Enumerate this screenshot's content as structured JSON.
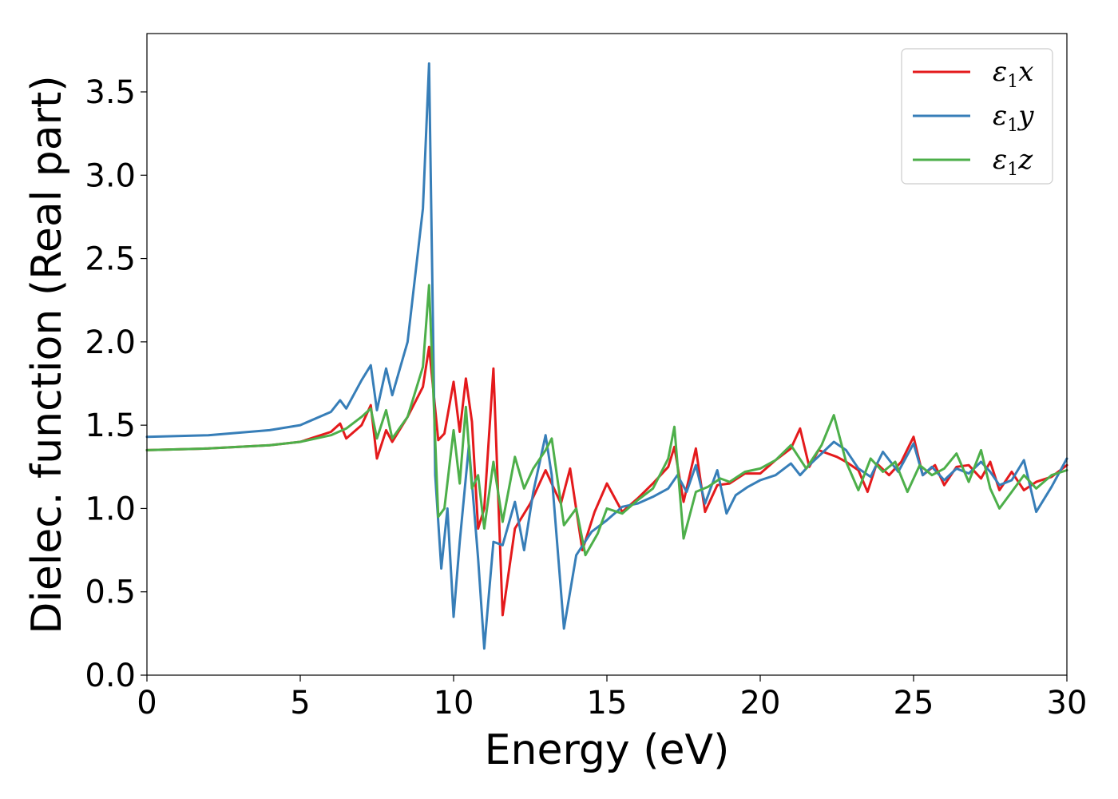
{
  "chart_data": {
    "type": "line",
    "xlabel": "Energy (eV)",
    "ylabel": "Dielec. function (Real part)",
    "xlim": [
      0,
      30
    ],
    "ylim": [
      0,
      3.85
    ],
    "xticks": [
      0,
      5,
      10,
      15,
      20,
      25,
      30
    ],
    "xtick_labels": [
      "0",
      "5",
      "10",
      "15",
      "20",
      "25",
      "30"
    ],
    "yticks": [
      0.0,
      0.5,
      1.0,
      1.5,
      2.0,
      2.5,
      3.0,
      3.5
    ],
    "ytick_labels": [
      "0.0",
      "0.5",
      "1.0",
      "1.5",
      "2.0",
      "2.5",
      "3.0",
      "3.5"
    ],
    "grid": false,
    "legend_position": "top-right",
    "series": [
      {
        "name": "ε1x",
        "label_main": "ε",
        "label_sub": "1",
        "label_var": "x",
        "color": "#e41a1c",
        "x": [
          0,
          2,
          4,
          5,
          6,
          6.3,
          6.5,
          7.0,
          7.3,
          7.5,
          7.8,
          8.0,
          8.5,
          9.0,
          9.2,
          9.5,
          9.7,
          10.0,
          10.2,
          10.4,
          10.6,
          10.8,
          11.0,
          11.3,
          11.6,
          12.0,
          12.5,
          13.0,
          13.5,
          13.8,
          14.2,
          14.6,
          15.0,
          15.5,
          16.0,
          16.5,
          17.0,
          17.2,
          17.5,
          17.9,
          18.2,
          18.6,
          19.0,
          19.5,
          20.0,
          20.5,
          21.0,
          21.3,
          21.6,
          21.9,
          22.2,
          22.5,
          22.8,
          23.2,
          23.5,
          23.8,
          24.2,
          24.6,
          25.0,
          25.3,
          25.7,
          26.0,
          26.4,
          26.8,
          27.2,
          27.5,
          27.8,
          28.2,
          28.6,
          29.0,
          29.5,
          30.0
        ],
        "values": [
          1.35,
          1.36,
          1.38,
          1.4,
          1.46,
          1.51,
          1.42,
          1.5,
          1.62,
          1.3,
          1.47,
          1.4,
          1.55,
          1.73,
          1.97,
          1.41,
          1.45,
          1.76,
          1.46,
          1.78,
          1.52,
          0.88,
          1.0,
          1.84,
          0.36,
          0.88,
          1.03,
          1.23,
          1.03,
          1.24,
          0.75,
          0.98,
          1.15,
          0.98,
          1.06,
          1.15,
          1.25,
          1.37,
          1.04,
          1.36,
          0.98,
          1.14,
          1.15,
          1.21,
          1.21,
          1.29,
          1.36,
          1.48,
          1.25,
          1.35,
          1.33,
          1.31,
          1.28,
          1.23,
          1.1,
          1.27,
          1.2,
          1.28,
          1.43,
          1.2,
          1.26,
          1.14,
          1.25,
          1.26,
          1.18,
          1.28,
          1.11,
          1.22,
          1.11,
          1.16,
          1.19,
          1.26
        ]
      },
      {
        "name": "ε1y",
        "label_main": "ε",
        "label_sub": "1",
        "label_var": "y",
        "color": "#377eb8",
        "x": [
          0,
          2,
          4,
          5,
          6,
          6.3,
          6.5,
          7.0,
          7.3,
          7.5,
          7.8,
          8.0,
          8.5,
          9.0,
          9.2,
          9.4,
          9.6,
          9.8,
          10.0,
          10.2,
          10.5,
          10.8,
          11.0,
          11.3,
          11.6,
          12.0,
          12.3,
          12.6,
          13.0,
          13.2,
          13.6,
          14.0,
          14.5,
          15.0,
          15.5,
          16.0,
          16.5,
          17.0,
          17.3,
          17.6,
          17.9,
          18.2,
          18.6,
          18.9,
          19.2,
          19.6,
          20.0,
          20.5,
          21.0,
          21.3,
          21.6,
          22.0,
          22.4,
          22.8,
          23.2,
          23.6,
          24.0,
          24.5,
          25.0,
          25.3,
          25.6,
          26.0,
          26.4,
          26.8,
          27.2,
          27.5,
          27.8,
          28.2,
          28.6,
          29.0,
          29.5,
          30.0
        ],
        "values": [
          1.43,
          1.44,
          1.47,
          1.5,
          1.58,
          1.65,
          1.6,
          1.77,
          1.86,
          1.59,
          1.84,
          1.68,
          2.0,
          2.8,
          3.67,
          1.2,
          0.64,
          1.0,
          0.35,
          0.8,
          1.38,
          0.7,
          0.16,
          0.8,
          0.78,
          1.04,
          0.75,
          1.1,
          1.44,
          1.2,
          0.28,
          0.72,
          0.86,
          0.93,
          1.01,
          1.03,
          1.07,
          1.12,
          1.2,
          1.1,
          1.26,
          1.03,
          1.23,
          0.97,
          1.08,
          1.13,
          1.17,
          1.2,
          1.27,
          1.2,
          1.26,
          1.33,
          1.4,
          1.35,
          1.24,
          1.19,
          1.34,
          1.22,
          1.39,
          1.2,
          1.25,
          1.17,
          1.24,
          1.21,
          1.28,
          1.22,
          1.14,
          1.17,
          1.29,
          0.98,
          1.13,
          1.3
        ]
      },
      {
        "name": "ε1z",
        "label_main": "ε",
        "label_sub": "1",
        "label_var": "z",
        "color": "#4daf4a",
        "x": [
          0,
          2,
          4,
          5,
          6,
          6.5,
          7.0,
          7.3,
          7.5,
          7.8,
          8.0,
          8.5,
          9.0,
          9.2,
          9.5,
          9.7,
          10.0,
          10.2,
          10.4,
          10.6,
          10.8,
          11.0,
          11.3,
          11.6,
          12.0,
          12.3,
          12.6,
          13.0,
          13.2,
          13.6,
          14.0,
          14.3,
          14.7,
          15.0,
          15.5,
          16.0,
          16.5,
          17.0,
          17.2,
          17.5,
          17.9,
          18.3,
          18.7,
          19.0,
          19.5,
          20.0,
          20.5,
          21.0,
          21.5,
          22.0,
          22.4,
          22.8,
          23.2,
          23.6,
          24.0,
          24.4,
          24.8,
          25.2,
          25.6,
          26.0,
          26.4,
          26.8,
          27.2,
          27.5,
          27.8,
          28.2,
          28.6,
          29.0,
          29.5,
          30.0
        ],
        "values": [
          1.35,
          1.36,
          1.38,
          1.4,
          1.44,
          1.48,
          1.55,
          1.6,
          1.42,
          1.59,
          1.42,
          1.55,
          1.85,
          2.34,
          0.95,
          1.0,
          1.47,
          1.15,
          1.61,
          1.12,
          1.2,
          0.88,
          1.28,
          0.92,
          1.31,
          1.12,
          1.24,
          1.35,
          1.42,
          0.9,
          1.0,
          0.72,
          0.85,
          1.0,
          0.97,
          1.05,
          1.12,
          1.3,
          1.49,
          0.82,
          1.1,
          1.13,
          1.18,
          1.16,
          1.22,
          1.24,
          1.29,
          1.38,
          1.24,
          1.38,
          1.56,
          1.28,
          1.11,
          1.3,
          1.22,
          1.28,
          1.1,
          1.26,
          1.2,
          1.24,
          1.33,
          1.16,
          1.35,
          1.12,
          1.0,
          1.1,
          1.2,
          1.12,
          1.2,
          1.23
        ]
      }
    ]
  }
}
